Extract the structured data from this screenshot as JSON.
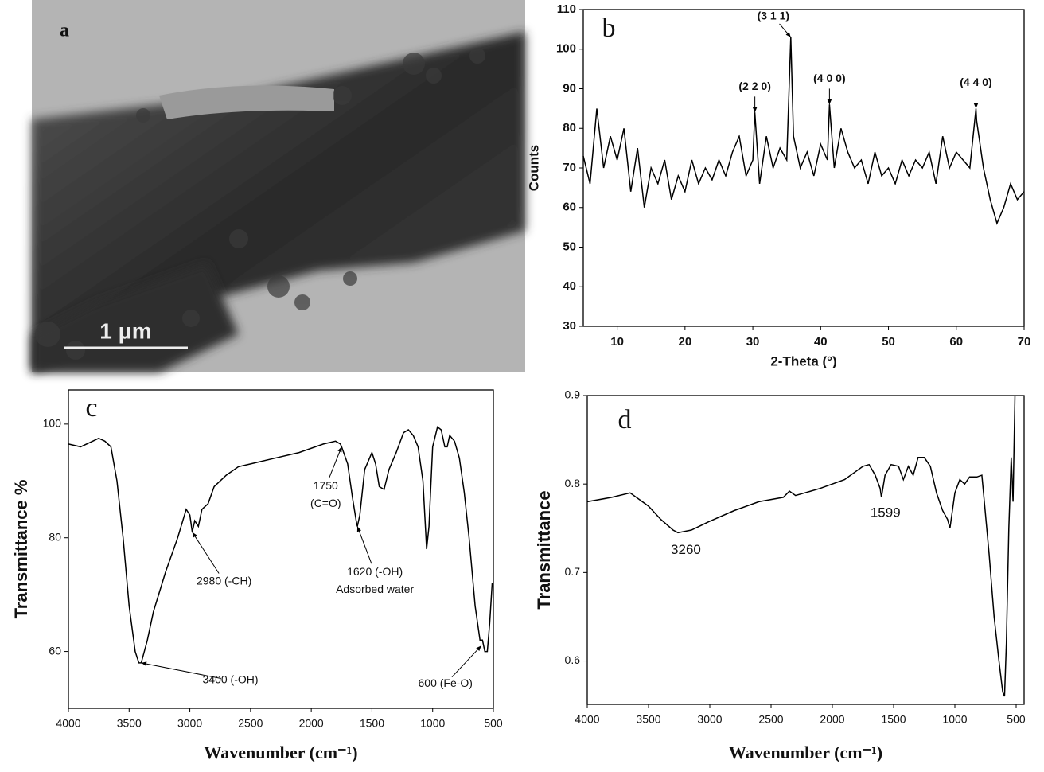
{
  "chart_data": [
    {
      "type": "image",
      "label": "a",
      "scale_bar": "1 μm"
    },
    {
      "type": "line",
      "label": "b",
      "xlabel": "2-Theta (°)",
      "ylabel": "Counts",
      "color": "#000000",
      "xlim": [
        5,
        70
      ],
      "ylim": [
        30,
        110
      ],
      "xticks": [
        10,
        20,
        30,
        40,
        50,
        60,
        70
      ],
      "yticks": [
        30,
        40,
        50,
        60,
        70,
        80,
        90,
        100,
        110
      ],
      "x": [
        5,
        6,
        7,
        8,
        9,
        10,
        11,
        12,
        13,
        14,
        15,
        16,
        17,
        18,
        19,
        20,
        21,
        22,
        23,
        24,
        25,
        26,
        27,
        28,
        29,
        30,
        30.3,
        31,
        32,
        33,
        34,
        35,
        35.6,
        36,
        37,
        38,
        39,
        40,
        41,
        41.3,
        42,
        43,
        44,
        45,
        46,
        47,
        48,
        49,
        50,
        51,
        52,
        53,
        54,
        55,
        56,
        57,
        58,
        59,
        60,
        61,
        62,
        62.9,
        63,
        64,
        65,
        66,
        67,
        68,
        69,
        70
      ],
      "values": [
        73,
        66,
        85,
        70,
        78,
        72,
        80,
        64,
        75,
        60,
        70,
        66,
        72,
        62,
        68,
        64,
        72,
        66,
        70,
        67,
        72,
        68,
        74,
        78,
        68,
        72,
        84,
        66,
        78,
        70,
        75,
        72,
        103,
        78,
        70,
        74,
        68,
        76,
        72,
        86,
        70,
        80,
        74,
        70,
        72,
        66,
        74,
        68,
        70,
        66,
        72,
        68,
        72,
        70,
        74,
        66,
        78,
        70,
        74,
        72,
        70,
        85,
        82,
        70,
        62,
        56,
        60,
        66,
        62,
        64
      ],
      "annotations": [
        {
          "text": [
            "(3 1 1)"
          ],
          "x": 35.6,
          "y": 103
        },
        {
          "text": [
            "(2 2 0)"
          ],
          "x": 30.3,
          "y": 84
        },
        {
          "text": [
            "(4 0 0)"
          ],
          "x": 41.3,
          "y": 86
        },
        {
          "text": [
            "(4 4 0)"
          ],
          "x": 62.9,
          "y": 85
        }
      ]
    },
    {
      "type": "line",
      "label": "c",
      "xlabel": "Wavenumber (cm⁻¹)",
      "ylabel": "Transmittance %",
      "color": "#000000",
      "xlim": [
        4000,
        500
      ],
      "ylim": [
        50,
        106
      ],
      "xticks": [
        4000,
        3500,
        3000,
        2500,
        2000,
        1500,
        1000,
        500
      ],
      "yticks": [
        60,
        80,
        100
      ],
      "x": [
        4000,
        3900,
        3800,
        3750,
        3700,
        3650,
        3600,
        3550,
        3500,
        3450,
        3420,
        3400,
        3350,
        3300,
        3200,
        3100,
        3030,
        3000,
        2980,
        2960,
        2930,
        2900,
        2850,
        2800,
        2700,
        2600,
        2500,
        2300,
        2100,
        1900,
        1800,
        1760,
        1750,
        1700,
        1660,
        1630,
        1620,
        1600,
        1560,
        1520,
        1500,
        1470,
        1440,
        1400,
        1360,
        1300,
        1240,
        1200,
        1160,
        1120,
        1080,
        1050,
        1030,
        1000,
        960,
        930,
        900,
        880,
        860,
        820,
        780,
        740,
        700,
        650,
        610,
        590,
        570,
        550,
        530,
        510
      ],
      "values": [
        96.5,
        96,
        97,
        97.5,
        97,
        96,
        90,
        80,
        68,
        60,
        58,
        58,
        62,
        67,
        74,
        80,
        85,
        84,
        81,
        83,
        82,
        85,
        86,
        89,
        91,
        92.5,
        93,
        94,
        95,
        96.5,
        97,
        96.5,
        96,
        93,
        87,
        83,
        82,
        84,
        92,
        94,
        95,
        93,
        89,
        88.5,
        92,
        95,
        98.5,
        99,
        98,
        96,
        90,
        78,
        82,
        96,
        99.5,
        99,
        96,
        96,
        98,
        97,
        94,
        88,
        80,
        68,
        62,
        62,
        60,
        60,
        65,
        72
      ],
      "annotations": [
        {
          "text": [
            "2980 (-CH)"
          ],
          "x": 2980,
          "y": 81
        },
        {
          "text": [
            "1750",
            "(C=O)"
          ],
          "x": 1750,
          "y": 96
        },
        {
          "text": [
            "1620 (-OH)",
            "Adsorbed water"
          ],
          "x": 1620,
          "y": 82
        },
        {
          "text": [
            "3400 (-OH)"
          ],
          "x": 3400,
          "y": 58
        },
        {
          "text": [
            "600 (Fe-O)"
          ],
          "x": 600,
          "y": 61
        }
      ]
    },
    {
      "type": "line",
      "label": "d",
      "xlabel": "Wavenumber (cm⁻¹)",
      "ylabel": "Transmittance",
      "color": "#000000",
      "xlim": [
        4000,
        435
      ],
      "ylim": [
        0.551,
        0.9
      ],
      "xticks": [
        4000,
        3500,
        3000,
        2500,
        2000,
        1500,
        1000,
        500
      ],
      "yticks": [
        0.6,
        0.7,
        0.8,
        0.9
      ],
      "x": [
        4000,
        3800,
        3650,
        3500,
        3400,
        3300,
        3260,
        3150,
        3000,
        2800,
        2600,
        2400,
        2350,
        2300,
        2100,
        1900,
        1750,
        1700,
        1650,
        1610,
        1599,
        1570,
        1520,
        1460,
        1420,
        1380,
        1340,
        1300,
        1250,
        1200,
        1150,
        1100,
        1060,
        1040,
        1000,
        960,
        920,
        880,
        820,
        780,
        760,
        720,
        680,
        640,
        610,
        595,
        580,
        560,
        540,
        525,
        510
      ],
      "values": [
        0.78,
        0.785,
        0.79,
        0.775,
        0.76,
        0.748,
        0.745,
        0.748,
        0.758,
        0.77,
        0.78,
        0.785,
        0.792,
        0.787,
        0.795,
        0.805,
        0.82,
        0.822,
        0.81,
        0.795,
        0.785,
        0.81,
        0.822,
        0.82,
        0.805,
        0.82,
        0.81,
        0.83,
        0.83,
        0.82,
        0.79,
        0.77,
        0.76,
        0.75,
        0.79,
        0.805,
        0.8,
        0.808,
        0.808,
        0.81,
        0.78,
        0.72,
        0.65,
        0.6,
        0.565,
        0.56,
        0.62,
        0.75,
        0.83,
        0.78,
        0.9
      ],
      "annotations": [
        {
          "text": [
            "3260"
          ],
          "x": 3260,
          "y": 0.745
        },
        {
          "text": [
            "1599"
          ],
          "x": 1599,
          "y": 0.785
        }
      ]
    }
  ]
}
